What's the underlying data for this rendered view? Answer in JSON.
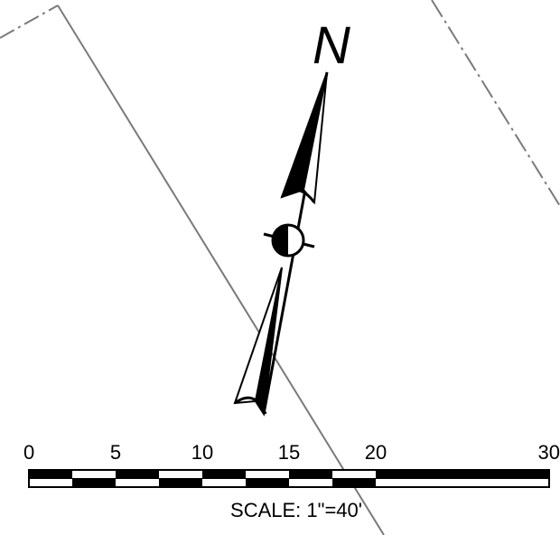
{
  "north_arrow": {
    "label": "N"
  },
  "scale_bar": {
    "tick_labels": [
      "0",
      "5",
      "10",
      "15",
      "20",
      "30"
    ],
    "tick_values": [
      0,
      5,
      10,
      15,
      20,
      30
    ],
    "title": "SCALE: 1\"=40'"
  },
  "colors": {
    "ink": "#000000",
    "background": "#ffffff",
    "boundary_line": "#7a7a7a"
  }
}
